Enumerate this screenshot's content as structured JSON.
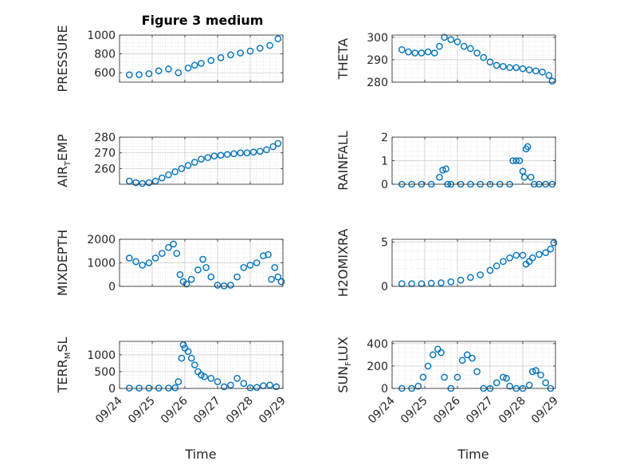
{
  "title": "Figure 3 medium",
  "marker_color": "#0072BD",
  "chart_data": [
    {
      "type": "scatter",
      "ylabel_main": "PRESSURE",
      "ylabel_sub": "",
      "ylabel_tail": "",
      "ylim": [
        500,
        1000
      ],
      "yticks": [
        600,
        800,
        1000
      ],
      "ytick_labels": [
        "600",
        "800",
        "1000"
      ],
      "x": [
        0.3,
        0.6,
        0.9,
        1.2,
        1.5,
        1.8,
        2.1,
        2.3,
        2.5,
        2.8,
        3.1,
        3.4,
        3.7,
        4.0,
        4.3,
        4.6,
        4.85
      ],
      "y": [
        578,
        580,
        590,
        620,
        640,
        600,
        650,
        680,
        700,
        730,
        760,
        790,
        810,
        830,
        860,
        890,
        960
      ]
    },
    {
      "type": "scatter",
      "ylabel_main": "THETA",
      "ylabel_sub": "",
      "ylabel_tail": "",
      "ylim": [
        280,
        301
      ],
      "yticks": [
        280,
        290,
        300
      ],
      "ytick_labels": [
        "280",
        "290",
        "300"
      ],
      "x": [
        0.3,
        0.5,
        0.7,
        0.9,
        1.1,
        1.3,
        1.45,
        1.6,
        1.8,
        2.0,
        2.2,
        2.4,
        2.6,
        2.8,
        3.0,
        3.2,
        3.4,
        3.6,
        3.8,
        4.0,
        4.2,
        4.4,
        4.6,
        4.8,
        4.9
      ],
      "y": [
        294.5,
        293.5,
        293,
        293,
        293.5,
        293,
        296,
        300,
        299,
        298,
        296,
        295,
        293,
        291,
        289,
        287.5,
        287,
        286.5,
        286.5,
        286,
        285.5,
        285,
        284.5,
        283,
        280.5
      ]
    },
    {
      "type": "scatter",
      "ylabel_main": "AIR",
      "ylabel_sub": "T",
      "ylabel_tail": "EMP",
      "ylim": [
        250,
        280
      ],
      "yticks": [
        260,
        270,
        280
      ],
      "ytick_labels": [
        "260",
        "270",
        "280"
      ],
      "x": [
        0.3,
        0.5,
        0.7,
        0.9,
        1.1,
        1.3,
        1.5,
        1.7,
        1.9,
        2.1,
        2.3,
        2.5,
        2.7,
        2.9,
        3.1,
        3.3,
        3.5,
        3.7,
        3.9,
        4.1,
        4.3,
        4.5,
        4.7,
        4.85
      ],
      "y": [
        252,
        251,
        250.5,
        251,
        252,
        254,
        256,
        258,
        260,
        262,
        264,
        266,
        267,
        268,
        268.5,
        269,
        269.5,
        270,
        270,
        270.5,
        271,
        272,
        274,
        276
      ]
    },
    {
      "type": "scatter",
      "ylabel_main": "RAINFALL",
      "ylabel_sub": "",
      "ylabel_tail": "",
      "ylim": [
        0,
        2
      ],
      "yticks": [
        0,
        1,
        2
      ],
      "ytick_labels": [
        "0",
        "1",
        "2"
      ],
      "x": [
        0.3,
        0.6,
        0.9,
        1.2,
        1.45,
        1.55,
        1.65,
        1.7,
        1.8,
        2.1,
        2.4,
        2.7,
        3.0,
        3.3,
        3.6,
        3.7,
        3.8,
        3.9,
        4.0,
        4.05,
        4.1,
        4.15,
        4.25,
        4.35,
        4.5,
        4.7,
        4.9
      ],
      "y": [
        0,
        0,
        0,
        0,
        0.3,
        0.6,
        0.65,
        0,
        0,
        0,
        0,
        0,
        0,
        0,
        0,
        1.0,
        1.0,
        1.0,
        0.55,
        0.3,
        1.5,
        1.6,
        0.3,
        0,
        0,
        0,
        0
      ]
    },
    {
      "type": "scatter",
      "ylabel_main": "MIXDEPTH",
      "ylabel_sub": "",
      "ylabel_tail": "",
      "ylim": [
        0,
        2000
      ],
      "yticks": [
        0,
        1000,
        2000
      ],
      "ytick_labels": [
        "0",
        "1000",
        "2000"
      ],
      "x": [
        0.3,
        0.5,
        0.7,
        0.9,
        1.1,
        1.3,
        1.5,
        1.65,
        1.75,
        1.85,
        1.95,
        2.05,
        2.2,
        2.4,
        2.55,
        2.65,
        2.8,
        3.0,
        3.2,
        3.4,
        3.6,
        3.8,
        4.0,
        4.2,
        4.4,
        4.55,
        4.65,
        4.75,
        4.85,
        4.95
      ],
      "y": [
        1200,
        1050,
        900,
        1000,
        1200,
        1400,
        1650,
        1800,
        1400,
        500,
        200,
        100,
        300,
        700,
        1150,
        800,
        400,
        50,
        20,
        50,
        400,
        800,
        900,
        1000,
        1300,
        1350,
        300,
        800,
        400,
        200
      ]
    },
    {
      "type": "scatter",
      "ylabel_main": "H2OMIXRA",
      "ylabel_sub": "",
      "ylabel_tail": "",
      "ylim": [
        0,
        5.3
      ],
      "yticks": [
        0,
        5
      ],
      "ytick_labels": [
        "0",
        "5"
      ],
      "x": [
        0.3,
        0.6,
        0.9,
        1.2,
        1.5,
        1.8,
        2.1,
        2.4,
        2.7,
        3.0,
        3.2,
        3.4,
        3.6,
        3.8,
        4.0,
        4.1,
        4.2,
        4.3,
        4.5,
        4.7,
        4.85,
        4.95
      ],
      "y": [
        0.3,
        0.3,
        0.3,
        0.35,
        0.4,
        0.5,
        0.7,
        1.0,
        1.3,
        1.8,
        2.3,
        2.8,
        3.2,
        3.5,
        3.5,
        2.5,
        2.8,
        3.2,
        3.6,
        3.8,
        4.2,
        4.9
      ]
    },
    {
      "type": "scatter",
      "ylabel_main": "TERR",
      "ylabel_sub": "M",
      "ylabel_tail": "SL",
      "ylim": [
        0,
        1400
      ],
      "yticks": [
        0,
        500,
        1000
      ],
      "ytick_labels": [
        "0",
        "500",
        "1000"
      ],
      "x": [
        0.3,
        0.6,
        0.9,
        1.2,
        1.5,
        1.7,
        1.8,
        1.9,
        1.95,
        2.0,
        2.1,
        2.2,
        2.3,
        2.4,
        2.5,
        2.6,
        2.8,
        3.0,
        3.2,
        3.4,
        3.6,
        3.8,
        4.0,
        4.2,
        4.4,
        4.6,
        4.8
      ],
      "y": [
        10,
        10,
        10,
        10,
        10,
        20,
        200,
        900,
        1300,
        1200,
        1100,
        900,
        700,
        500,
        400,
        350,
        300,
        200,
        50,
        100,
        300,
        150,
        20,
        30,
        80,
        100,
        50
      ]
    },
    {
      "type": "scatter",
      "ylabel_main": "SUN",
      "ylabel_sub": "F",
      "ylabel_tail": "LUX",
      "ylim": [
        0,
        420
      ],
      "yticks": [
        0,
        200,
        400
      ],
      "ytick_labels": [
        "0",
        "200",
        "400"
      ],
      "x": [
        0.3,
        0.6,
        0.8,
        0.95,
        1.1,
        1.25,
        1.4,
        1.5,
        1.6,
        1.8,
        2.0,
        2.15,
        2.3,
        2.45,
        2.6,
        2.8,
        3.0,
        3.2,
        3.4,
        3.5,
        3.6,
        3.8,
        4.0,
        4.2,
        4.3,
        4.4,
        4.55,
        4.7,
        4.85
      ],
      "y": [
        0,
        0,
        20,
        100,
        200,
        300,
        350,
        320,
        100,
        0,
        100,
        250,
        300,
        270,
        150,
        0,
        0,
        50,
        100,
        90,
        20,
        0,
        0,
        30,
        150,
        160,
        120,
        50,
        0
      ]
    }
  ],
  "xlim": [
    0,
    5
  ],
  "xticks": [
    0,
    1,
    2,
    3,
    4,
    5
  ],
  "xtick_labels": [
    "09/24",
    "09/25",
    "09/26",
    "09/27",
    "09/28",
    "09/29"
  ],
  "xlabel_left": "Time",
  "xlabel_right": "Time"
}
